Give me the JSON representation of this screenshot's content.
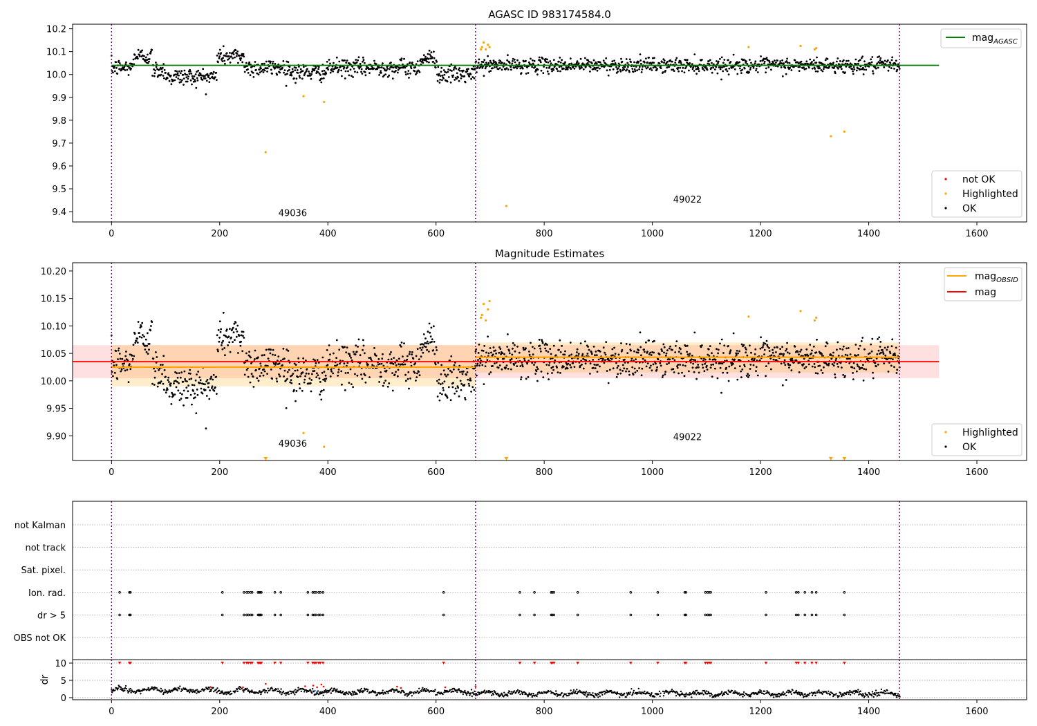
{
  "chart_data": [
    {
      "panel": "agasc",
      "type": "scatter",
      "title": "AGASC ID 983174584.0",
      "xlim": [
        -72,
        1692
      ],
      "ylim": [
        9.355,
        10.22
      ],
      "xticks": [
        0,
        200,
        400,
        600,
        800,
        1000,
        1200,
        1400,
        1600
      ],
      "yticks": [
        9.4,
        9.5,
        9.6,
        9.7,
        9.8,
        9.9,
        10.0,
        10.1,
        10.2
      ],
      "xlabel": "",
      "ylabel": "",
      "grid": false,
      "legend_top": {
        "position": "top-right",
        "entries": [
          {
            "label": "mag",
            "sub": "AGASC",
            "color": "#008000",
            "kind": "line"
          }
        ]
      },
      "legend_bottom": {
        "position": "bottom-right",
        "entries": [
          {
            "label": "not OK",
            "color": "#ff0000",
            "kind": "dot"
          },
          {
            "label": "Highlighted",
            "color": "#ffa500",
            "kind": "dot"
          },
          {
            "label": "OK",
            "color": "#000000",
            "kind": "dot"
          }
        ]
      },
      "hlines": [
        {
          "name": "mag AGASC",
          "y": 10.04,
          "x0": 0,
          "x1": 1530,
          "color": "#008000"
        }
      ],
      "vlines": [
        0,
        673,
        1457
      ],
      "obsid_labels": [
        {
          "text": "49036",
          "x": 335,
          "y": 9.38
        },
        {
          "text": "49022",
          "x": 1065,
          "y": 9.44
        }
      ],
      "ok_segments": [
        {
          "x0": 0,
          "x1": 40,
          "y": 10.03
        },
        {
          "x0": 40,
          "x1": 75,
          "y": 10.08
        },
        {
          "x0": 75,
          "x1": 100,
          "y": 10.02
        },
        {
          "x0": 100,
          "x1": 195,
          "y": 9.99
        },
        {
          "x0": 195,
          "x1": 245,
          "y": 10.08
        },
        {
          "x0": 245,
          "x1": 330,
          "y": 10.03
        },
        {
          "x0": 330,
          "x1": 400,
          "y": 10.01
        },
        {
          "x0": 400,
          "x1": 570,
          "y": 10.03
        },
        {
          "x0": 570,
          "x1": 602,
          "y": 10.07
        },
        {
          "x0": 602,
          "x1": 673,
          "y": 10.0
        },
        {
          "x0": 673,
          "x1": 1460,
          "y": 10.04
        }
      ],
      "highlighted": [
        {
          "x": 685,
          "y": 10.12
        },
        {
          "x": 688,
          "y": 10.14
        },
        {
          "x": 692,
          "y": 10.11
        },
        {
          "x": 696,
          "y": 10.13
        },
        {
          "x": 699,
          "y": 10.12
        },
        {
          "x": 683,
          "y": 10.11
        },
        {
          "x": 285,
          "y": 9.66
        },
        {
          "x": 355,
          "y": 9.905
        },
        {
          "x": 393,
          "y": 9.88
        },
        {
          "x": 730,
          "y": 9.425
        },
        {
          "x": 1178,
          "y": 10.12
        },
        {
          "x": 1274,
          "y": 10.125
        },
        {
          "x": 1300,
          "y": 10.11
        },
        {
          "x": 1303,
          "y": 10.115
        },
        {
          "x": 1330,
          "y": 9.73
        },
        {
          "x": 1355,
          "y": 9.75
        }
      ],
      "not_ok": []
    },
    {
      "panel": "magnitude-estimates",
      "type": "scatter",
      "title": "Magnitude Estimates",
      "xlim": [
        -72,
        1692
      ],
      "ylim": [
        9.855,
        10.215
      ],
      "xticks": [
        0,
        200,
        400,
        600,
        800,
        1000,
        1200,
        1400,
        1600
      ],
      "yticks": [
        9.9,
        9.95,
        10.0,
        10.05,
        10.1,
        10.15,
        10.2
      ],
      "xlabel": "",
      "ylabel": "",
      "grid": false,
      "legend_top": {
        "position": "top-right",
        "entries": [
          {
            "label": "mag",
            "sub": "OBSID",
            "color": "#ffa500",
            "kind": "line"
          },
          {
            "label": "mag",
            "sub": "",
            "color": "#ff0000",
            "kind": "line"
          }
        ]
      },
      "legend_bottom": {
        "position": "bottom-right",
        "entries": [
          {
            "label": "Highlighted",
            "color": "#ffa500",
            "kind": "dot"
          },
          {
            "label": "OK",
            "color": "#000000",
            "kind": "dot"
          }
        ]
      },
      "mag_band": {
        "y": 10.035,
        "lo": 10.005,
        "hi": 10.065,
        "x0": -72,
        "x1": 1530,
        "color": "#ff0000"
      },
      "obsid_bands": [
        {
          "x0": 0,
          "x1": 673,
          "y": 10.025,
          "lo": 9.99,
          "hi": 10.065
        },
        {
          "x0": 673,
          "x1": 1457,
          "y": 10.043,
          "lo": 10.015,
          "hi": 10.07
        }
      ],
      "vlines": [
        0,
        673,
        1457
      ],
      "obsid_labels": [
        {
          "text": "49036",
          "x": 335,
          "y": 9.88
        },
        {
          "text": "49022",
          "x": 1065,
          "y": 9.892
        }
      ],
      "ok_segments": [
        {
          "x0": 0,
          "x1": 40,
          "y": 10.03
        },
        {
          "x0": 40,
          "x1": 75,
          "y": 10.08
        },
        {
          "x0": 75,
          "x1": 100,
          "y": 10.02
        },
        {
          "x0": 100,
          "x1": 195,
          "y": 9.99
        },
        {
          "x0": 195,
          "x1": 245,
          "y": 10.08
        },
        {
          "x0": 245,
          "x1": 330,
          "y": 10.03
        },
        {
          "x0": 330,
          "x1": 400,
          "y": 10.01
        },
        {
          "x0": 400,
          "x1": 570,
          "y": 10.03
        },
        {
          "x0": 570,
          "x1": 602,
          "y": 10.07
        },
        {
          "x0": 602,
          "x1": 673,
          "y": 10.0
        },
        {
          "x0": 673,
          "x1": 1460,
          "y": 10.04
        }
      ],
      "highlighted": [
        {
          "x": 685,
          "y": 10.12
        },
        {
          "x": 688,
          "y": 10.14
        },
        {
          "x": 692,
          "y": 10.11
        },
        {
          "x": 696,
          "y": 10.13
        },
        {
          "x": 699,
          "y": 10.145
        },
        {
          "x": 683,
          "y": 10.115
        },
        {
          "x": 355,
          "y": 9.905
        },
        {
          "x": 393,
          "y": 9.88
        },
        {
          "x": 1178,
          "y": 10.117
        },
        {
          "x": 1274,
          "y": 10.127
        },
        {
          "x": 1300,
          "y": 10.11
        },
        {
          "x": 1303,
          "y": 10.115
        }
      ],
      "off_scale_markers": [
        285,
        730,
        1330,
        1355
      ]
    },
    {
      "panel": "flags",
      "type": "scatter",
      "title": "",
      "xlim": [
        -72,
        1692
      ],
      "categories": [
        "not Kalman",
        "not track",
        "Sat. pixel.",
        "Ion. rad.",
        "dr > 5",
        "OBS not OK"
      ],
      "vlines": [
        0,
        673,
        1457
      ],
      "flag_x": [
        15,
        33,
        35,
        205,
        245,
        250,
        253,
        257,
        260,
        271,
        273,
        275,
        277,
        302,
        313,
        363,
        372,
        375,
        378,
        383,
        386,
        391,
        614,
        755,
        782,
        813,
        815,
        818,
        862,
        960,
        1010,
        1060,
        1062,
        1098,
        1102,
        1105,
        1108,
        1210,
        1266,
        1270,
        1282,
        1295,
        1303,
        1355
      ],
      "flag_rows": [
        "Ion. rad.",
        "dr > 5"
      ]
    },
    {
      "panel": "dr",
      "type": "scatter",
      "title": "",
      "xlim": [
        -72,
        1692
      ],
      "ylim": [
        -0.6,
        11.0
      ],
      "yticks": [
        0,
        5,
        10
      ],
      "ylabel": "dr",
      "clip_value": 10,
      "vlines": [
        0,
        673,
        1457
      ],
      "markers_at_10": [
        15,
        33,
        35,
        205,
        245,
        250,
        253,
        257,
        260,
        271,
        273,
        275,
        277,
        302,
        313,
        363,
        372,
        375,
        378,
        383,
        386,
        391,
        614,
        755,
        782,
        813,
        815,
        818,
        862,
        960,
        1010,
        1060,
        1062,
        1098,
        1102,
        1105,
        1108,
        1210,
        1266,
        1270,
        1282,
        1295,
        1303,
        1355
      ],
      "red_points": [
        {
          "x": 183,
          "y": 3.1
        },
        {
          "x": 243,
          "y": 3.0
        },
        {
          "x": 285,
          "y": 4.0
        },
        {
          "x": 358,
          "y": 3.3
        },
        {
          "x": 373,
          "y": 3.5
        },
        {
          "x": 380,
          "y": 3.0
        },
        {
          "x": 388,
          "y": 3.8
        },
        {
          "x": 392,
          "y": 3.2
        },
        {
          "x": 528,
          "y": 3.2
        },
        {
          "x": 535,
          "y": 2.8
        },
        {
          "x": 617,
          "y": 3.0
        },
        {
          "x": 673,
          "y": 3.3
        }
      ],
      "blue_points": [
        {
          "x": 376,
          "y": 2.0
        },
        {
          "x": 380,
          "y": 1.6
        }
      ],
      "dr_segments": [
        {
          "x0": 0,
          "x1": 180,
          "y": 2.2
        },
        {
          "x0": 180,
          "x1": 360,
          "y": 1.9
        },
        {
          "x0": 360,
          "x1": 673,
          "y": 1.7
        },
        {
          "x0": 673,
          "x1": 1460,
          "y": 1.2
        }
      ]
    }
  ]
}
